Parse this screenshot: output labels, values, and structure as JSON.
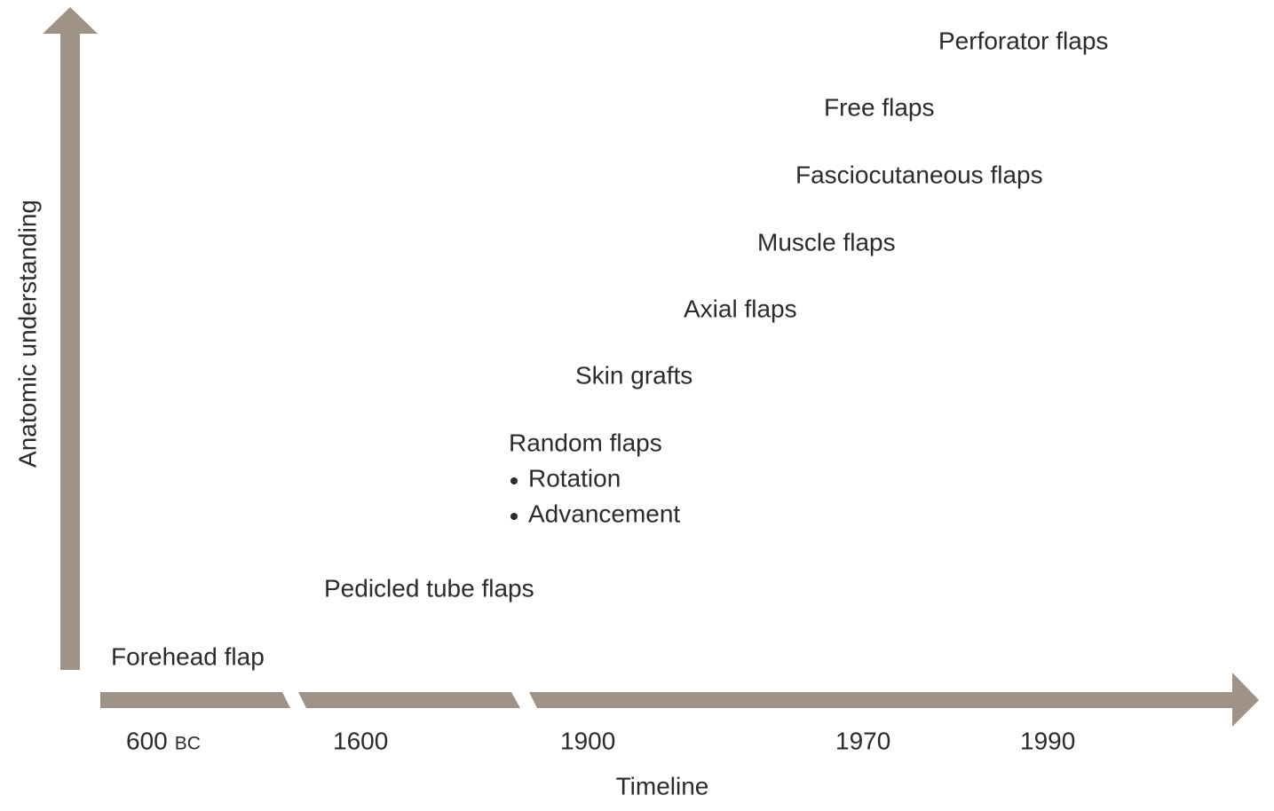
{
  "y_axis": {
    "label": "Anatomic understanding"
  },
  "x_axis": {
    "label": "Timeline",
    "ticks": [
      "600",
      "1600",
      "1900",
      "1970",
      "1990"
    ],
    "first_tick_era": "BC"
  },
  "milestones": [
    {
      "label": "Perforator flaps"
    },
    {
      "label": "Free flaps"
    },
    {
      "label": "Fasciocutaneous flaps"
    },
    {
      "label": "Muscle flaps"
    },
    {
      "label": "Axial flaps"
    },
    {
      "label": "Skin grafts"
    },
    {
      "label": "Random flaps",
      "items": [
        "Rotation",
        "Advancement"
      ]
    },
    {
      "label": "Pedicled tube flaps"
    },
    {
      "label": "Forehead flap"
    }
  ]
}
